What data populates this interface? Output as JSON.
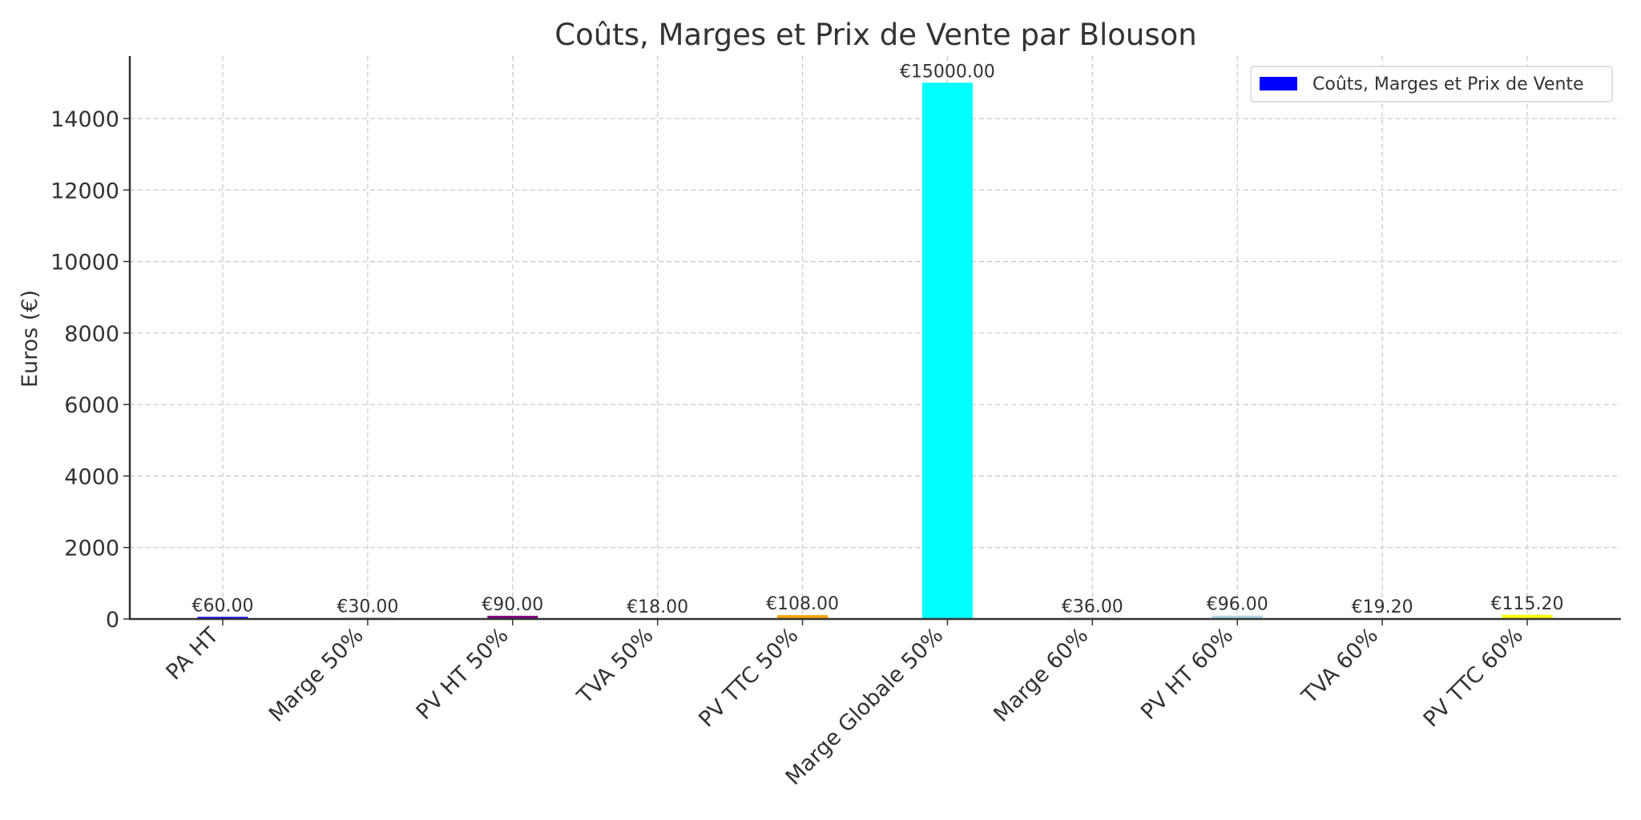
{
  "chart_data": {
    "type": "bar",
    "title": "Coûts, Marges et Prix de Vente par Blouson",
    "xlabel": "",
    "ylabel": "Euros (€)",
    "ylim": [
      0,
      15700
    ],
    "yticks": [
      0,
      2000,
      4000,
      6000,
      8000,
      10000,
      12000,
      14000
    ],
    "grid": true,
    "legend_position": "upper right",
    "categories": [
      "PA HT",
      "Marge 50%",
      "PV HT 50%",
      "TVA 50%",
      "PV TTC 50%",
      "Marge Globale 50%",
      "Marge 60%",
      "PV HT 60%",
      "TVA 60%",
      "PV TTC 60%"
    ],
    "series": [
      {
        "name": "Coûts, Marges et Prix de Vente",
        "values": [
          60.0,
          30.0,
          90.0,
          18.0,
          108.0,
          15000.0,
          36.0,
          96.0,
          19.2,
          115.2
        ],
        "colors": [
          "#0000ff",
          "#008000",
          "#800080",
          "#ff0000",
          "#ffa500",
          "#00ffff",
          "#90ee90",
          "#add8e6",
          "#ffc0cb",
          "#ffff00"
        ],
        "labels": [
          "€60.00",
          "€30.00",
          "€90.00",
          "€18.00",
          "€108.00",
          "€15000.00",
          "€36.00",
          "€96.00",
          "€19.20",
          "€115.20"
        ]
      }
    ],
    "legend": [
      {
        "label": "Coûts, Marges et Prix de Vente",
        "color": "#0000ff"
      }
    ]
  }
}
